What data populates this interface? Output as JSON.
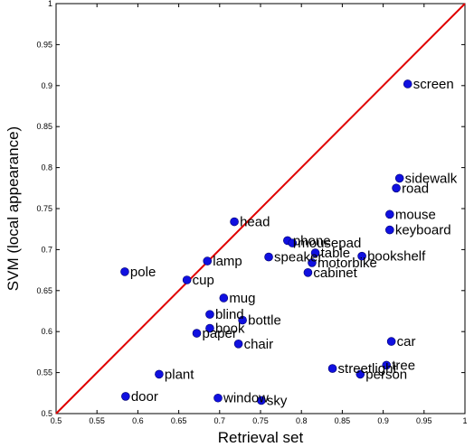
{
  "chart_data": {
    "type": "scatter",
    "xlabel": "Retrieval set",
    "ylabel": "SVM (local appearance)",
    "xlim": [
      0.5,
      1
    ],
    "ylim": [
      0.5,
      1
    ],
    "x_ticks": [
      0.5,
      0.55,
      0.6,
      0.65,
      0.7,
      0.75,
      0.8,
      0.85,
      0.9,
      0.95,
      1
    ],
    "y_ticks": [
      0.5,
      0.55,
      0.6,
      0.65,
      0.7,
      0.75,
      0.8,
      0.85,
      0.9,
      0.95,
      1
    ],
    "x_tick_labels": [
      "0.5",
      "0.55",
      "0.6",
      "0.65",
      "0.7",
      "0.75",
      "0.8",
      "0.85",
      "0.9",
      "0.95",
      "1"
    ],
    "y_tick_labels": [
      "0.5",
      "0.55",
      "0.6",
      "0.65",
      "0.7",
      "0.75",
      "0.8",
      "0.85",
      "0.9",
      "0.95",
      "1"
    ],
    "grid": false,
    "diagonal_line": {
      "from": [
        0.5,
        0.5
      ],
      "to": [
        1,
        1
      ],
      "color": "#e00000"
    },
    "marker_color": "#1010e0",
    "points": [
      {
        "label": "screen",
        "x": 0.93,
        "y": 0.902
      },
      {
        "label": "sidewalk",
        "x": 0.92,
        "y": 0.787
      },
      {
        "label": "road",
        "x": 0.916,
        "y": 0.775
      },
      {
        "label": "mouse",
        "x": 0.908,
        "y": 0.743
      },
      {
        "label": "keyboard",
        "x": 0.908,
        "y": 0.724
      },
      {
        "label": "head",
        "x": 0.718,
        "y": 0.734
      },
      {
        "label": "phone",
        "x": 0.783,
        "y": 0.711
      },
      {
        "label": "mousepad",
        "x": 0.789,
        "y": 0.708
      },
      {
        "label": "table",
        "x": 0.817,
        "y": 0.696
      },
      {
        "label": "bookshelf",
        "x": 0.874,
        "y": 0.692
      },
      {
        "label": "speaker",
        "x": 0.76,
        "y": 0.691
      },
      {
        "label": "motorbike",
        "x": 0.813,
        "y": 0.684
      },
      {
        "label": "cabinet",
        "x": 0.808,
        "y": 0.672
      },
      {
        "label": "lamp",
        "x": 0.685,
        "y": 0.686
      },
      {
        "label": "pole",
        "x": 0.584,
        "y": 0.673
      },
      {
        "label": "cup",
        "x": 0.66,
        "y": 0.663
      },
      {
        "label": "mug",
        "x": 0.705,
        "y": 0.641
      },
      {
        "label": "blind",
        "x": 0.688,
        "y": 0.621
      },
      {
        "label": "bottle",
        "x": 0.728,
        "y": 0.614
      },
      {
        "label": "book",
        "x": 0.688,
        "y": 0.604
      },
      {
        "label": "paper",
        "x": 0.672,
        "y": 0.598
      },
      {
        "label": "chair",
        "x": 0.723,
        "y": 0.585
      },
      {
        "label": "car",
        "x": 0.91,
        "y": 0.588
      },
      {
        "label": "streetlight",
        "x": 0.838,
        "y": 0.555
      },
      {
        "label": "tree",
        "x": 0.904,
        "y": 0.559
      },
      {
        "label": "person",
        "x": 0.872,
        "y": 0.548
      },
      {
        "label": "plant",
        "x": 0.626,
        "y": 0.548
      },
      {
        "label": "door",
        "x": 0.585,
        "y": 0.521
      },
      {
        "label": "window",
        "x": 0.698,
        "y": 0.519
      },
      {
        "label": "sky",
        "x": 0.751,
        "y": 0.516
      }
    ]
  }
}
